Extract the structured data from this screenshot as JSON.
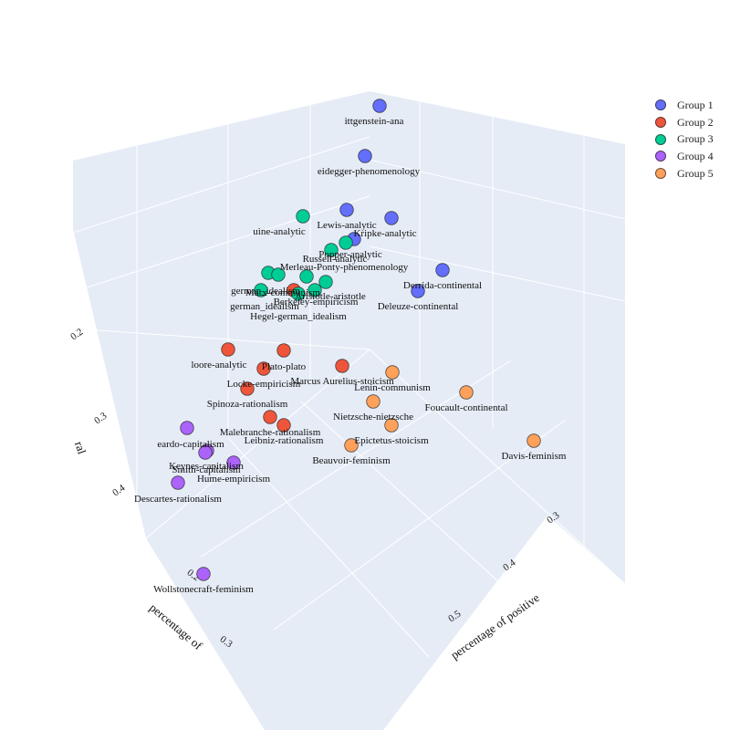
{
  "chart_data": {
    "type": "scatter",
    "projection": "3d",
    "axes": {
      "x": {
        "title": "percentage of positive",
        "ticks": [
          "0.3",
          "0.4",
          "0.5"
        ]
      },
      "y": {
        "title": "percentage of",
        "ticks": [
          "0.2",
          "0.3"
        ]
      },
      "z": {
        "title": "ral",
        "ticks": [
          "0.2",
          "0.3",
          "0.4"
        ]
      }
    },
    "legend": {
      "position": "top-right"
    },
    "series": [
      {
        "name": "Group 1",
        "color": "#636efa",
        "points": [
          {
            "label": "Wittgenstein-analytic",
            "shown": "ittgenstein-ana"
          },
          {
            "label": "Heidegger-phenomenology",
            "shown": "eidegger-phenomenology"
          },
          {
            "label": "Lewis-analytic",
            "shown": "Lewis-analytic"
          },
          {
            "label": "Kripke-analytic",
            "shown": "Kripke-analytic"
          },
          {
            "label": "Russell-analytic",
            "shown": ""
          },
          {
            "label": "Derrida-continental",
            "shown": "Derrida-continental"
          },
          {
            "label": "Deleuze-continental",
            "shown": "Deleuze-continental"
          }
        ]
      },
      {
        "name": "Group 2",
        "color": "#ef553b",
        "points": [
          {
            "label": "Moore-analytic",
            "shown": "loore-analytic"
          },
          {
            "label": "Plato-plato",
            "shown": "Plato-plato"
          },
          {
            "label": "Locke-empiricism",
            "shown": "Locke-empiricism"
          },
          {
            "label": "Marcus Aurelius-stoicism",
            "shown": "Marcus Aurelius-stoicism"
          },
          {
            "label": "Spinoza-rationalism",
            "shown": "Spinoza-rationalism"
          },
          {
            "label": "Malebranche-rationalism",
            "shown": "Malebranche-rationalism"
          },
          {
            "label": "Leibniz-rationalism",
            "shown": "Leibniz-rationalism"
          },
          {
            "label": "Aristotle-aristotle",
            "shown": ""
          }
        ]
      },
      {
        "name": "Group 3",
        "color": "#00cc96",
        "points": [
          {
            "label": "Quine-analytic",
            "shown": "uine-analytic"
          },
          {
            "label": "Popper-analytic",
            "shown": "Popper-analytic"
          },
          {
            "label": "Russell-analytic",
            "shown": "Russell-analytic"
          },
          {
            "label": "Merleau-Ponty-phenomenology",
            "shown": "Merleau-Ponty-phenomenology"
          },
          {
            "label": "Fichte-german_idealism",
            "shown": "german_idealism"
          },
          {
            "label": "Marx-communism",
            "shown": "Marx-communism"
          },
          {
            "label": "Aristotle-aristotle",
            "shown": "Aristotle-aristotle"
          },
          {
            "label": "Berkeley-empiricism",
            "shown": "Berkeley-empiricism"
          },
          {
            "label": "Kant-german_idealism",
            "shown": "german_idealism"
          },
          {
            "label": "Hegel-german_idealism",
            "shown": "Hegel-german_idealism"
          }
        ]
      },
      {
        "name": "Group 4",
        "color": "#ab63fa",
        "points": [
          {
            "label": "Ricardo-capitalism",
            "shown": "eardo-capitalism"
          },
          {
            "label": "Keynes-capitalism",
            "shown": "Keynes-capitalism"
          },
          {
            "label": "Smith-capitalism",
            "shown": "Smith-capitalism"
          },
          {
            "label": "Hume-empiricism",
            "shown": "Hume-empiricism"
          },
          {
            "label": "Descartes-rationalism",
            "shown": "Descartes-rationalism"
          },
          {
            "label": "Wollstonecraft-feminism",
            "shown": "Wollstonecraft-feminism"
          }
        ]
      },
      {
        "name": "Group 5",
        "color": "#ffa15a",
        "points": [
          {
            "label": "Lenin-communism",
            "shown": "Lenin-communism"
          },
          {
            "label": "Foucault-continental",
            "shown": "Foucault-continental"
          },
          {
            "label": "Nietzsche-nietzsche",
            "shown": "Nietzsche-nietzsche"
          },
          {
            "label": "Epictetus-stoicism",
            "shown": "Epictetus-stoicism"
          },
          {
            "label": "Beauvoir-feminism",
            "shown": "Beauvoir-feminism"
          },
          {
            "label": "Davis-feminism",
            "shown": "Davis-feminism"
          }
        ]
      }
    ]
  }
}
